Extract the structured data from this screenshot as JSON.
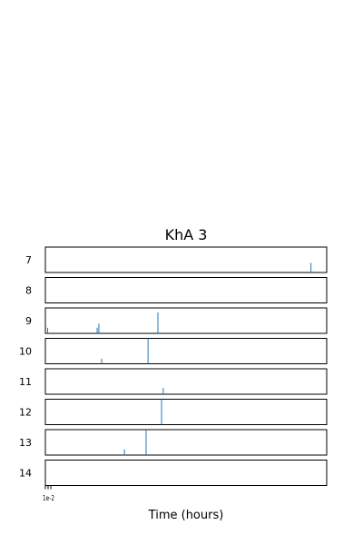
{
  "chart_data": {
    "type": "bar",
    "title": "KhA 3",
    "xlabel": "Time (hours)",
    "ylabel": "",
    "xlim": [
      0,
      1
    ],
    "ylim": [
      0,
      1
    ],
    "channels": [
      {
        "label": "7",
        "spikes": [
          {
            "x": 0.944,
            "h": 0.38
          }
        ]
      },
      {
        "label": "8",
        "spikes": []
      },
      {
        "label": "9",
        "spikes": [
          {
            "x": 0.008,
            "h": 0.22
          },
          {
            "x": 0.184,
            "h": 0.22
          },
          {
            "x": 0.19,
            "h": 0.38
          },
          {
            "x": 0.4,
            "h": 0.82
          }
        ]
      },
      {
        "label": "10",
        "spikes": [
          {
            "x": 0.2,
            "h": 0.2
          },
          {
            "x": 0.365,
            "h": 1.0
          }
        ]
      },
      {
        "label": "11",
        "spikes": [
          {
            "x": 0.419,
            "h": 0.25
          }
        ]
      },
      {
        "label": "12",
        "spikes": [
          {
            "x": 0.413,
            "h": 1.0
          }
        ]
      },
      {
        "label": "13",
        "spikes": [
          {
            "x": 0.281,
            "h": 0.22
          },
          {
            "x": 0.358,
            "h": 1.0
          }
        ]
      },
      {
        "label": "14",
        "spikes": []
      }
    ],
    "series_color": "#1f77b4",
    "xtick_label": "1e-2",
    "grid": false,
    "legend": "none"
  }
}
